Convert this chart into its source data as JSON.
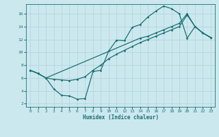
{
  "xlabel": "Humidex (Indice chaleur)",
  "bg_color": "#cce8ef",
  "grid_color": "#b0d0da",
  "line_color": "#1a7070",
  "xlim": [
    -0.5,
    23.5
  ],
  "ylim": [
    1.5,
    17.5
  ],
  "xticks": [
    0,
    1,
    2,
    3,
    4,
    5,
    6,
    7,
    8,
    9,
    10,
    11,
    12,
    13,
    14,
    15,
    16,
    17,
    18,
    19,
    20,
    21,
    22,
    23
  ],
  "yticks": [
    2,
    4,
    6,
    8,
    10,
    12,
    14,
    16
  ],
  "line1_x": [
    0,
    1,
    2,
    3,
    4,
    5,
    6,
    7,
    8,
    9,
    10,
    11,
    12,
    13,
    14,
    15,
    16,
    17,
    18,
    19,
    20,
    21,
    22,
    23
  ],
  "line1_y": [
    7.2,
    6.7,
    6.0,
    4.3,
    3.3,
    3.2,
    2.7,
    2.8,
    7.0,
    7.2,
    10.2,
    11.9,
    11.8,
    13.9,
    14.3,
    15.5,
    16.4,
    17.2,
    16.8,
    16.0,
    12.2,
    14.0,
    13.0,
    12.3
  ],
  "line2_x": [
    0,
    1,
    2,
    14,
    15,
    16,
    17,
    18,
    19,
    20,
    21,
    22,
    23
  ],
  "line2_y": [
    7.2,
    6.7,
    6.0,
    12.2,
    12.5,
    13.0,
    13.5,
    14.0,
    14.5,
    16.0,
    14.0,
    13.0,
    12.3
  ],
  "line3_x": [
    0,
    1,
    2,
    3,
    4,
    5,
    6,
    7,
    8,
    9,
    10,
    11,
    12,
    13,
    14,
    15,
    16,
    17,
    18,
    19,
    20,
    21,
    22,
    23
  ],
  "line3_y": [
    7.2,
    6.7,
    6.0,
    5.8,
    5.7,
    5.6,
    5.8,
    6.2,
    7.2,
    8.0,
    9.0,
    9.7,
    10.3,
    10.9,
    11.5,
    12.0,
    12.5,
    13.0,
    13.5,
    14.0,
    15.8,
    14.0,
    13.0,
    12.3
  ]
}
